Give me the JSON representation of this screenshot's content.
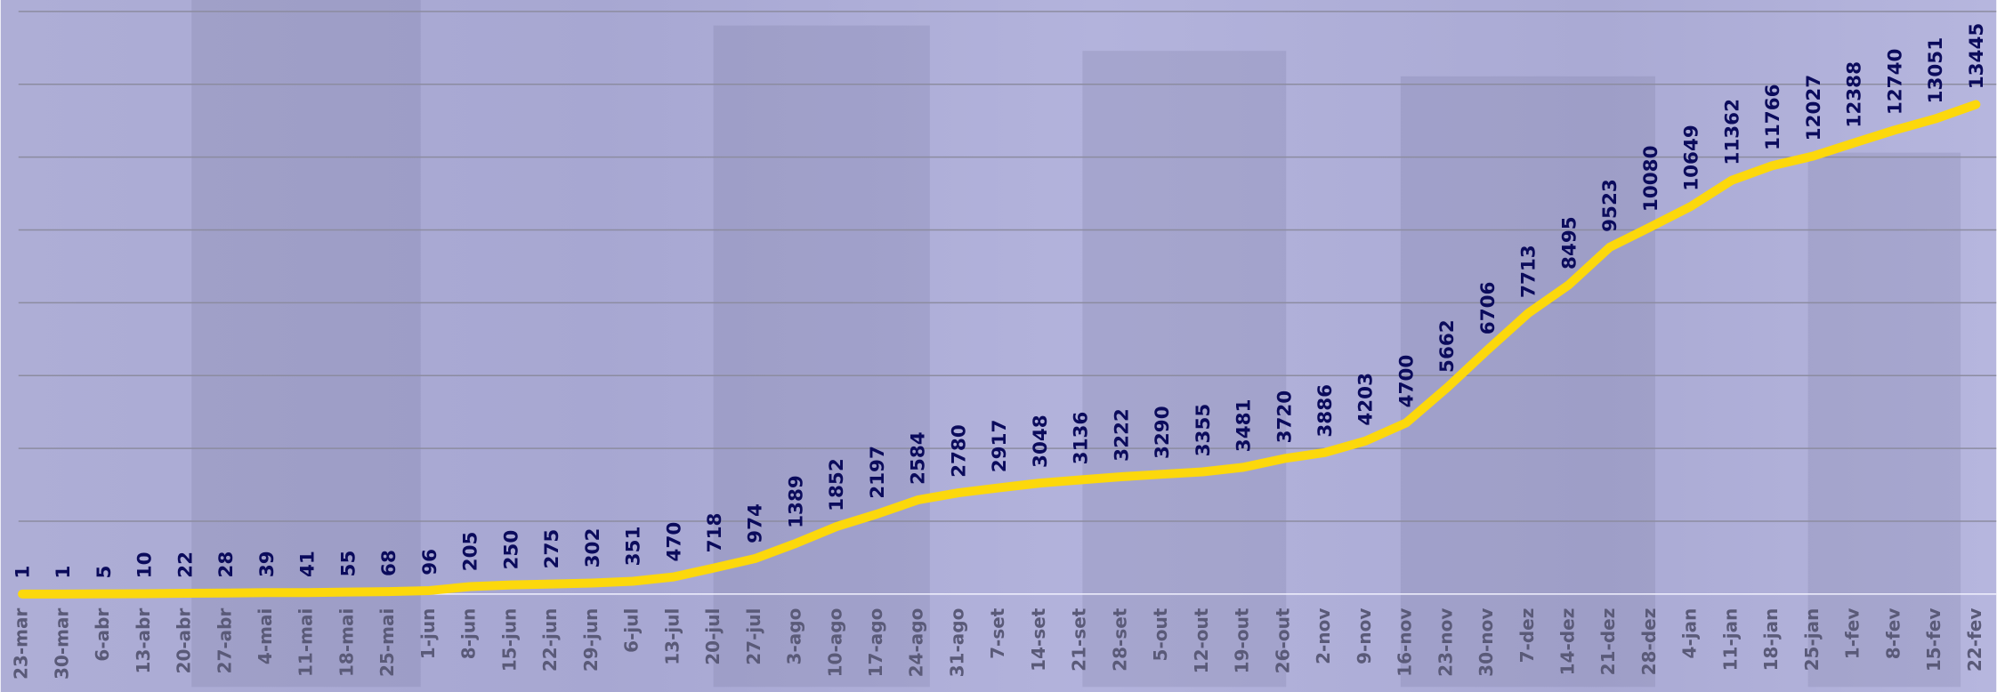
{
  "chart_data": {
    "type": "line",
    "categories": [
      "23-mar",
      "30-mar",
      "6-abr",
      "13-abr",
      "20-abr",
      "27-abr",
      "4-mai",
      "11-mai",
      "18-mai",
      "25-mai",
      "1-jun",
      "8-jun",
      "15-jun",
      "22-jun",
      "29-jun",
      "6-jul",
      "13-jul",
      "20-jul",
      "27-jul",
      "3-ago",
      "10-ago",
      "17-ago",
      "24-ago",
      "31-ago",
      "7-set",
      "14-set",
      "21-set",
      "28-set",
      "5-out",
      "12-out",
      "19-out",
      "26-out",
      "2-nov",
      "9-nov",
      "16-nov",
      "23-nov",
      "30-nov",
      "7-dez",
      "14-dez",
      "21-dez",
      "28-dez",
      "4-jan",
      "11-jan",
      "18-jan",
      "25-jan",
      "1-fev",
      "8-fev",
      "15-fev",
      "22-fev"
    ],
    "series": [
      {
        "color": "#fcd80c",
        "values": [
          1,
          1,
          5,
          10,
          22,
          28,
          39,
          41,
          55,
          68,
          96,
          205,
          250,
          275,
          302,
          351,
          470,
          718,
          974,
          1389,
          1852,
          2197,
          2584,
          2780,
          2917,
          3048,
          3136,
          3222,
          3290,
          3355,
          3481,
          3720,
          3886,
          4203,
          4700,
          5662,
          6706,
          7713,
          8495,
          9523,
          10080,
          10649,
          11362,
          11766,
          12027,
          12388,
          12740,
          13051,
          13445
        ]
      }
    ],
    "ylim": [
      0,
      16000
    ],
    "yticks": [
      0,
      2000,
      4000,
      6000,
      8000,
      10000,
      12000,
      14000,
      16000
    ],
    "grid": true
  }
}
